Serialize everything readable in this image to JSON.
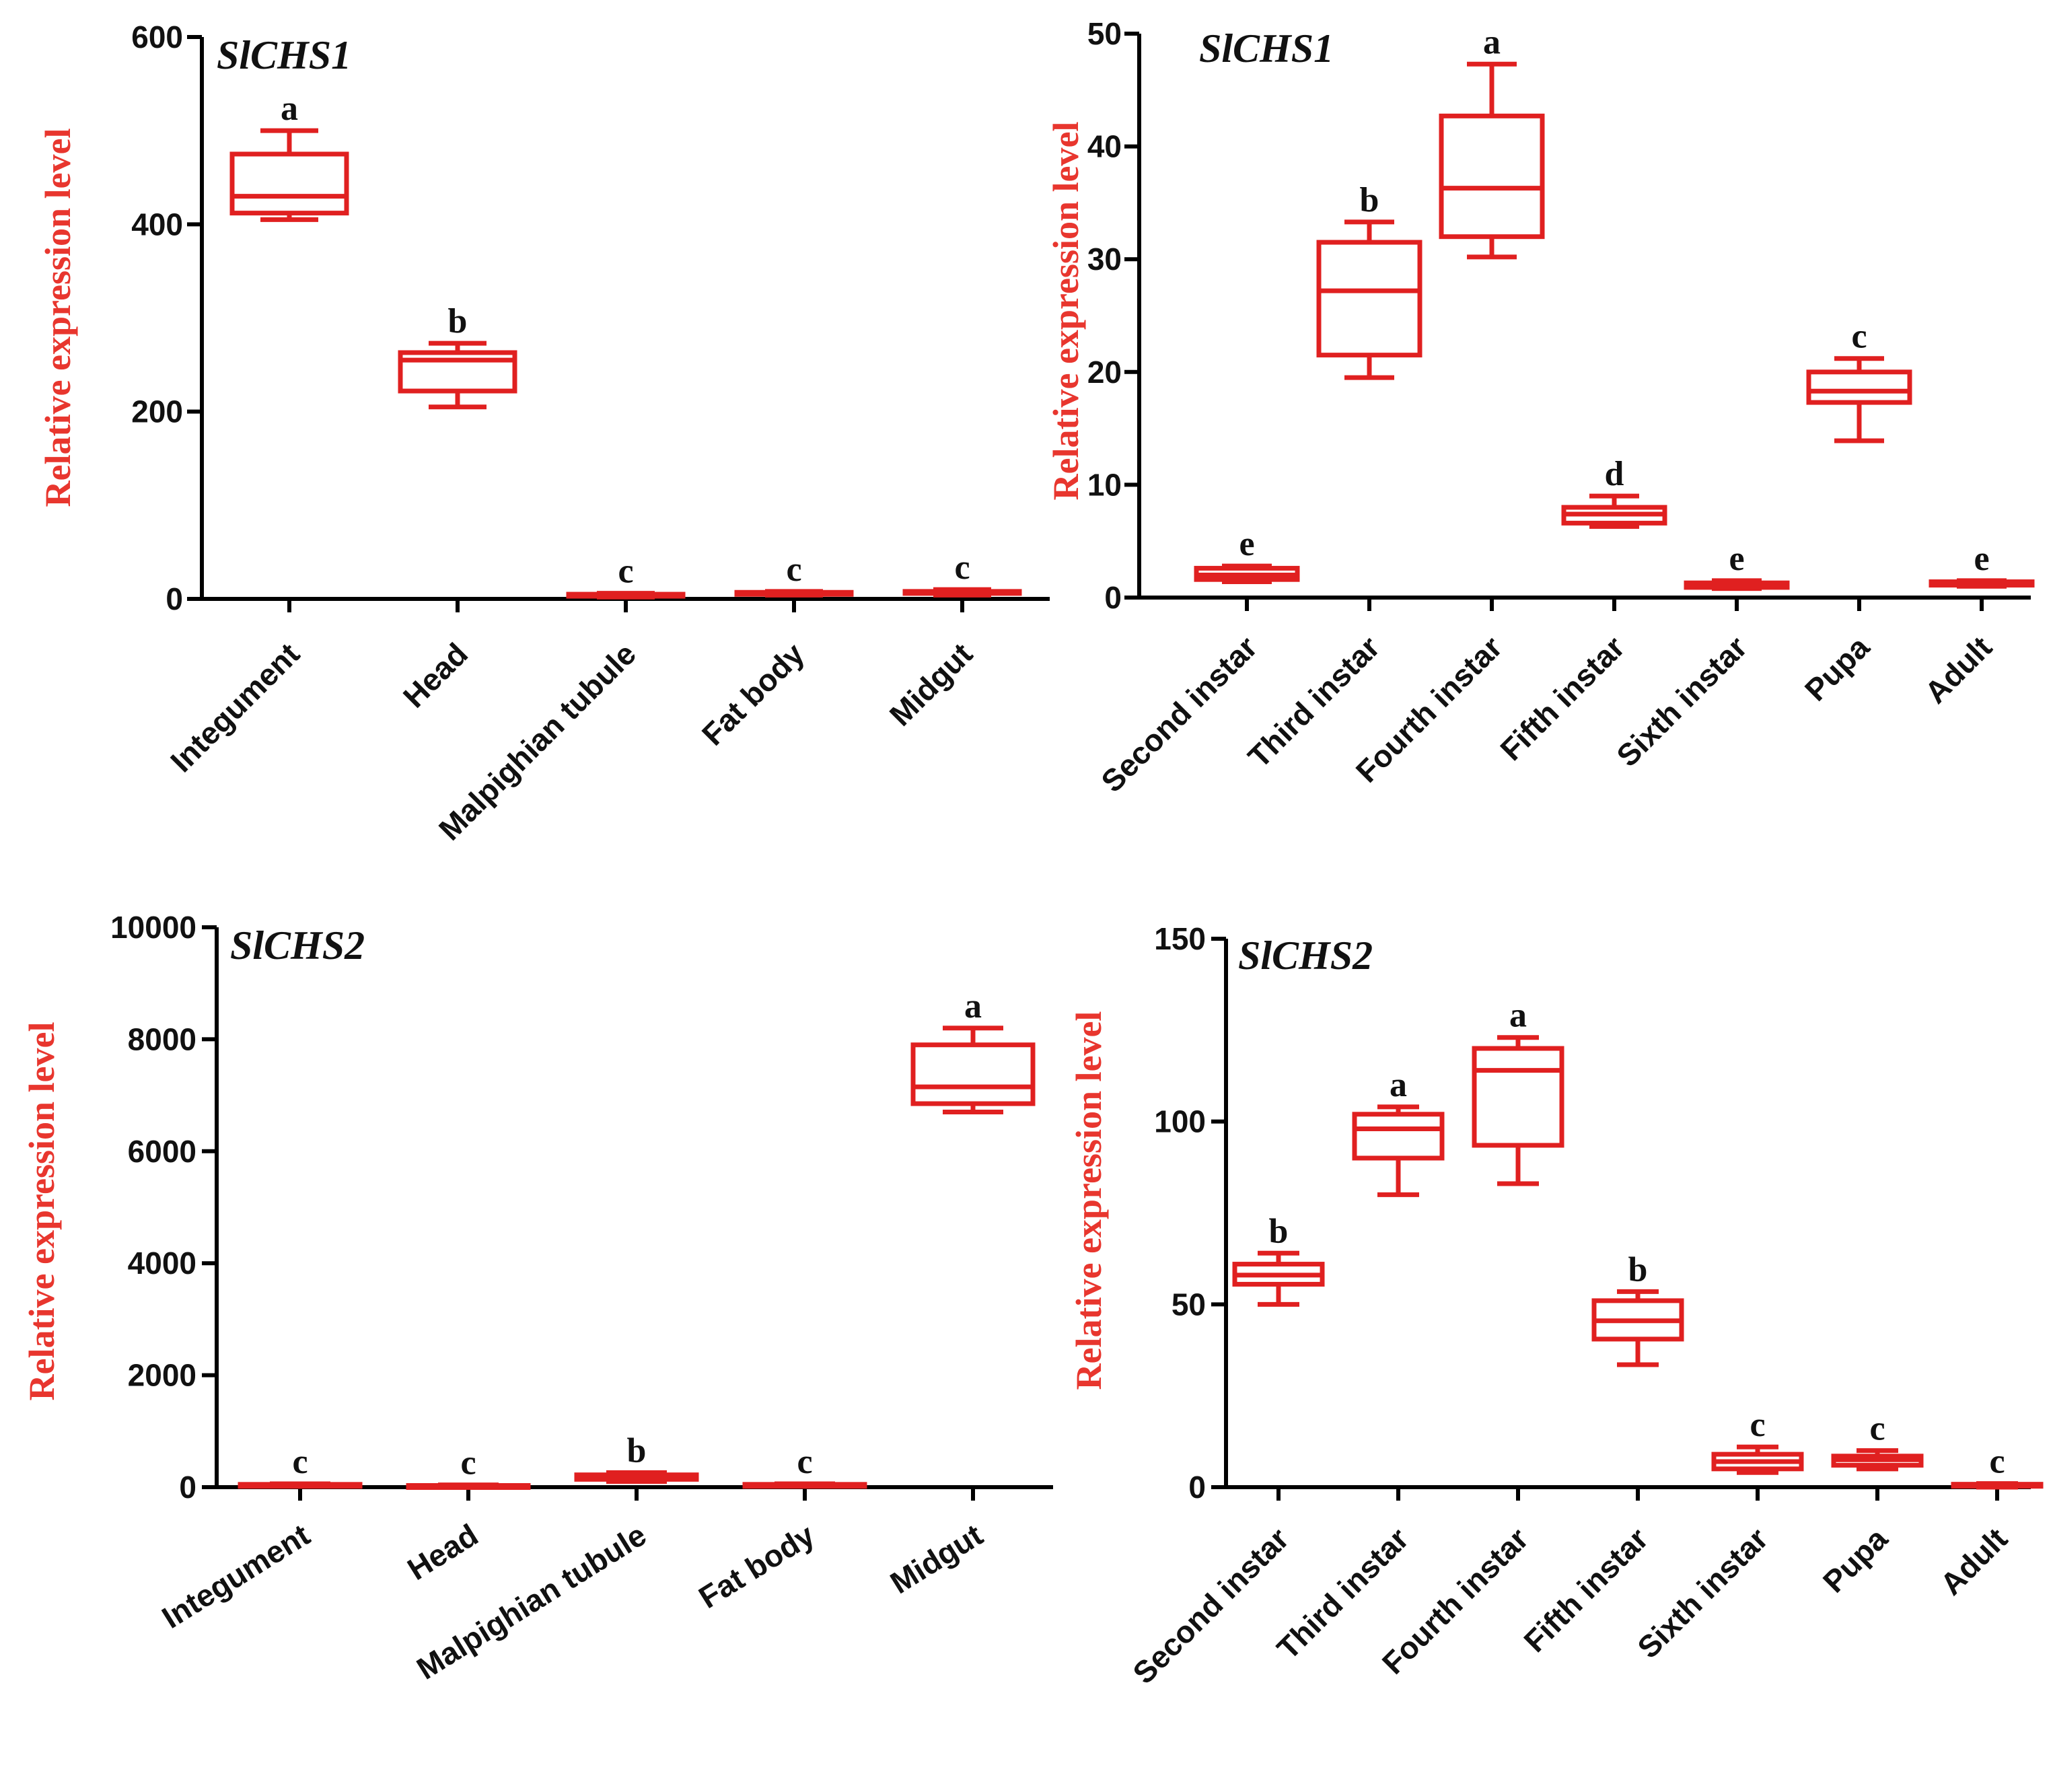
{
  "colors": {
    "box": "#e02020",
    "axis": "#000000",
    "label": "#e8362e"
  },
  "chart_data": [
    {
      "type": "box",
      "title": "SlCHS1",
      "ylabel": "Relative expression level",
      "ylim": [
        0,
        600
      ],
      "yticks": [
        0,
        200,
        400,
        600
      ],
      "categories": [
        "Integument",
        "Head",
        "Malpighian tubule",
        "Fat body",
        "Midgut"
      ],
      "boxes": [
        {
          "min": 405,
          "q1": 412,
          "median": 430,
          "q3": 475,
          "max": 500
        },
        {
          "min": 205,
          "q1": 222,
          "median": 255,
          "q3": 263,
          "max": 273
        },
        {
          "min": 2,
          "q1": 3,
          "median": 4,
          "q3": 5,
          "max": 6
        },
        {
          "min": 4,
          "q1": 5,
          "median": 6,
          "q3": 7,
          "max": 8
        },
        {
          "min": 4,
          "q1": 6,
          "median": 7,
          "q3": 8,
          "max": 10
        }
      ],
      "letters": [
        "a",
        "b",
        "c",
        "c",
        "c"
      ]
    },
    {
      "type": "box",
      "title": "SlCHS1",
      "ylabel": "Relative expression level",
      "ylim": [
        0,
        50
      ],
      "yticks": [
        0,
        10,
        20,
        30,
        40,
        50
      ],
      "categories": [
        "Second instar",
        "Third instar",
        "Fourth instar",
        "Fifth instar",
        "Sixth instar",
        "Pupa",
        "Adult"
      ],
      "boxes": [
        {
          "min": 1.4,
          "q1": 1.6,
          "median": 2.0,
          "q3": 2.6,
          "max": 2.8
        },
        {
          "min": 19.5,
          "q1": 21.5,
          "median": 27.2,
          "q3": 31.5,
          "max": 33.3
        },
        {
          "min": 30.2,
          "q1": 32.0,
          "median": 36.3,
          "q3": 42.7,
          "max": 47.3
        },
        {
          "min": 6.3,
          "q1": 6.6,
          "median": 7.4,
          "q3": 8.0,
          "max": 9.0
        },
        {
          "min": 0.8,
          "q1": 0.9,
          "median": 1.1,
          "q3": 1.3,
          "max": 1.5
        },
        {
          "min": 13.9,
          "q1": 17.3,
          "median": 18.3,
          "q3": 20.0,
          "max": 21.2
        },
        {
          "min": 1.0,
          "q1": 1.1,
          "median": 1.3,
          "q3": 1.4,
          "max": 1.5
        }
      ],
      "letters": [
        "e",
        "b",
        "a",
        "d",
        "e",
        "c",
        "e"
      ]
    },
    {
      "type": "box",
      "title": "SlCHS2",
      "ylabel": "Relative expression level",
      "ylim": [
        0,
        10000
      ],
      "yticks": [
        0,
        2000,
        4000,
        6000,
        8000,
        10000
      ],
      "categories": [
        "Integument",
        "Head",
        "Malpighian tubule",
        "Fat body",
        "Midgut"
      ],
      "boxes": [
        {
          "min": 20,
          "q1": 30,
          "median": 40,
          "q3": 50,
          "max": 60
        },
        {
          "min": 10,
          "q1": 20,
          "median": 25,
          "q3": 30,
          "max": 40
        },
        {
          "min": 100,
          "q1": 140,
          "median": 180,
          "q3": 220,
          "max": 260
        },
        {
          "min": 20,
          "q1": 30,
          "median": 40,
          "q3": 50,
          "max": 60
        },
        {
          "min": 6700,
          "q1": 6850,
          "median": 7150,
          "q3": 7900,
          "max": 8200
        }
      ],
      "letters": [
        "c",
        "c",
        "b",
        "c",
        "a"
      ]
    },
    {
      "type": "box",
      "title": "SlCHS2",
      "ylabel": "Relative expression level",
      "ylim": [
        0,
        150
      ],
      "yticks": [
        0,
        50,
        100,
        150
      ],
      "categories": [
        "Second instar",
        "Third instar",
        "Fourth instar",
        "Fifth instar",
        "Sixth instar",
        "Pupa",
        "Adult"
      ],
      "boxes": [
        {
          "min": 50,
          "q1": 55.5,
          "median": 58,
          "q3": 61,
          "max": 64
        },
        {
          "min": 80,
          "q1": 90,
          "median": 98,
          "q3": 102,
          "max": 104
        },
        {
          "min": 83,
          "q1": 93.5,
          "median": 114,
          "q3": 120,
          "max": 123
        },
        {
          "min": 33.5,
          "q1": 40.5,
          "median": 45.5,
          "q3": 51,
          "max": 53.5
        },
        {
          "min": 4,
          "q1": 5,
          "median": 7,
          "q3": 9,
          "max": 11
        },
        {
          "min": 5,
          "q1": 6,
          "median": 7.5,
          "q3": 8.5,
          "max": 10
        },
        {
          "min": 0,
          "q1": 0.4,
          "median": 0.6,
          "q3": 0.8,
          "max": 1
        }
      ],
      "letters": [
        "b",
        "a",
        "a",
        "b",
        "c",
        "c",
        "c"
      ]
    }
  ]
}
